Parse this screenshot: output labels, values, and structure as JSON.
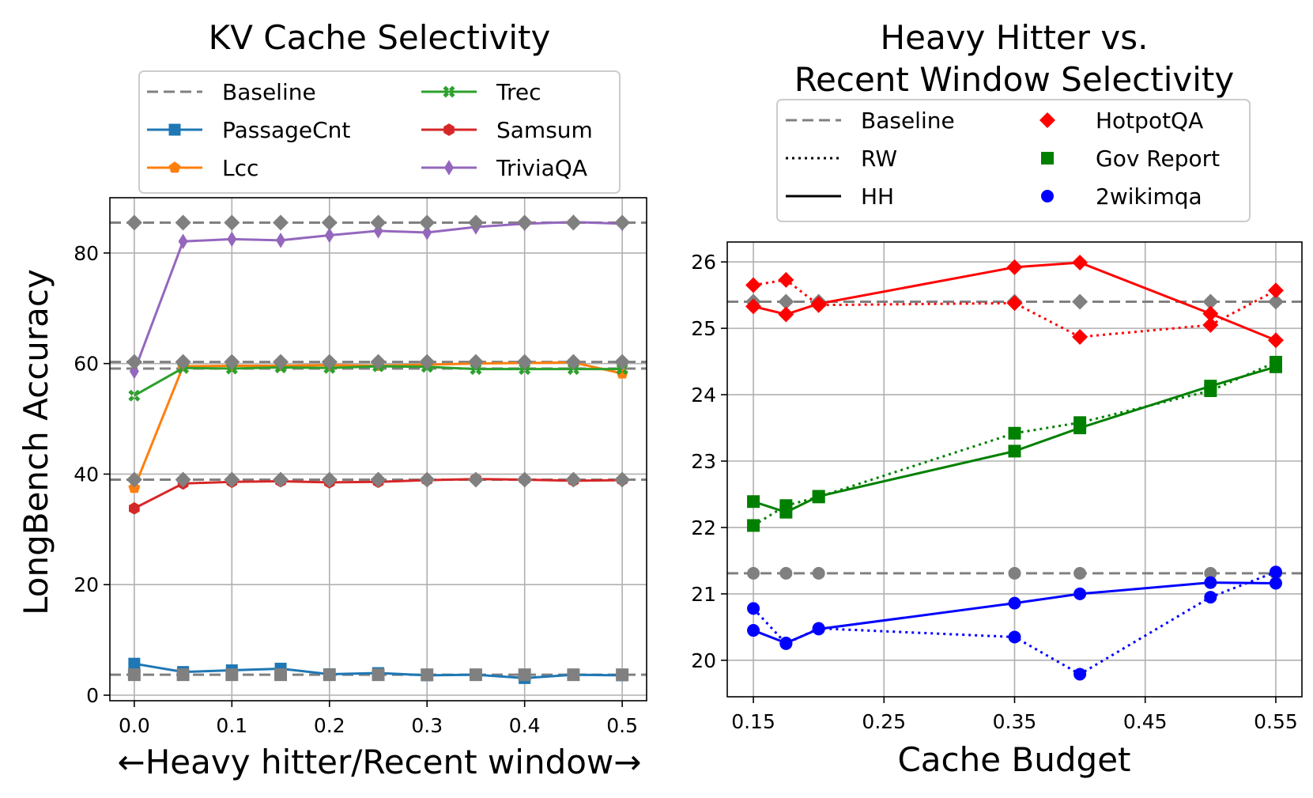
{
  "chart_data": [
    {
      "type": "line",
      "title": "KV Cache Selectivity",
      "xlabel": "←Heavy hitter/Recent window→",
      "ylabel": "LongBench Accuracy",
      "xlim": [
        -0.025,
        0.525
      ],
      "ylim": [
        -1,
        90
      ],
      "xticks": [
        0.0,
        0.1,
        0.2,
        0.3,
        0.4,
        0.5
      ],
      "xtick_labels": [
        "0.0",
        "0.1",
        "0.2",
        "0.3",
        "0.4",
        "0.5"
      ],
      "yticks": [
        0,
        20,
        40,
        60,
        80
      ],
      "ytick_labels": [
        "0",
        "20",
        "40",
        "60",
        "80"
      ],
      "grid": true,
      "legend_location": "above plot",
      "x": [
        0.0,
        0.05,
        0.1,
        0.15,
        0.2,
        0.25,
        0.3,
        0.35,
        0.4,
        0.45,
        0.5
      ],
      "baseline_label": "Baseline",
      "baselines": [
        {
          "value": 85.5,
          "color": "#808080"
        },
        {
          "value": 60.3,
          "color": "#808080"
        },
        {
          "value": 59.1,
          "color": "#808080"
        },
        {
          "value": 39.0,
          "color": "#808080"
        },
        {
          "value": 3.7,
          "color": "#808080"
        }
      ],
      "baseline_marker_series": [
        {
          "values": [
            60.3,
            60.3,
            60.3,
            60.3,
            60.3,
            60.3,
            60.3,
            60.3,
            60.3,
            60.3,
            60.3
          ],
          "marker": "diamond"
        },
        {
          "values": [
            85.5,
            85.5,
            85.5,
            85.5,
            85.5,
            85.5,
            85.5,
            85.5,
            85.5,
            85.5,
            85.5
          ],
          "marker": "diamond"
        },
        {
          "values": [
            39.0,
            39.0,
            39.0,
            39.0,
            39.0,
            39.0,
            39.0,
            39.0,
            39.0,
            39.0,
            39.0
          ],
          "marker": "diamond"
        },
        {
          "values": [
            3.7,
            3.7,
            3.7,
            3.7,
            3.7,
            3.7,
            3.7,
            3.7,
            3.7,
            3.7,
            3.7
          ],
          "marker": "square"
        }
      ],
      "series": [
        {
          "name": "PassageCnt",
          "color": "#1f77b4",
          "marker": "square",
          "values": [
            5.7,
            4.2,
            4.5,
            4.8,
            3.8,
            4.0,
            3.6,
            3.7,
            3.1,
            3.7,
            3.6
          ]
        },
        {
          "name": "Lcc",
          "color": "#ff7f0e",
          "marker": "pentagon",
          "values": [
            37.5,
            59.5,
            59.6,
            59.6,
            59.7,
            59.6,
            59.8,
            60.0,
            60.1,
            60.2,
            58.2
          ]
        },
        {
          "name": "Trec",
          "color": "#2ca02c",
          "marker": "x",
          "values": [
            54.2,
            59.2,
            59.1,
            59.3,
            59.2,
            59.5,
            59.4,
            59.0,
            59.0,
            59.0,
            59.0
          ]
        },
        {
          "name": "Samsum",
          "color": "#d62728",
          "marker": "hexagon",
          "values": [
            33.8,
            38.3,
            38.6,
            38.7,
            38.5,
            38.6,
            38.9,
            39.1,
            39.0,
            38.8,
            38.9
          ]
        },
        {
          "name": "TriviaQA",
          "color": "#9467bd",
          "marker": "thin_diamond",
          "values": [
            58.6,
            82.1,
            82.5,
            82.3,
            83.2,
            84.0,
            83.7,
            84.7,
            85.3,
            85.6,
            85.3
          ]
        }
      ]
    },
    {
      "type": "line",
      "title": "Heavy Hitter vs.",
      "title_line2": "Recent Window Selectivity",
      "xlabel": "Cache Budget",
      "ylabel": "",
      "xlim": [
        0.13,
        0.57
      ],
      "ylim": [
        19.45,
        26.3
      ],
      "xticks": [
        0.15,
        0.25,
        0.35,
        0.45,
        0.55
      ],
      "xtick_labels": [
        "0.15",
        "0.25",
        "0.35",
        "0.45",
        "0.55"
      ],
      "yticks": [
        20,
        21,
        22,
        23,
        24,
        25,
        26
      ],
      "ytick_labels": [
        "20",
        "21",
        "22",
        "23",
        "24",
        "25",
        "26"
      ],
      "grid": true,
      "legend_location": "above plot",
      "x": [
        0.15,
        0.175,
        0.2,
        0.35,
        0.4,
        0.5,
        0.55
      ],
      "style_legend": [
        {
          "label": "Baseline",
          "dash": "dashed",
          "color": "#808080"
        },
        {
          "label": "RW",
          "dash": "dotted",
          "color": "#000000"
        },
        {
          "label": "HH",
          "dash": "solid",
          "color": "#000000"
        }
      ],
      "baselines": [
        {
          "value": 25.4,
          "color": "#808080",
          "marker": "diamond"
        },
        {
          "value": 21.31,
          "color": "#808080",
          "marker": "circle"
        }
      ],
      "series": [
        {
          "name": "HotpotQA",
          "color": "#ff0000",
          "marker": "diamond",
          "rw": [
            25.65,
            25.73,
            25.35,
            25.38,
            24.87,
            25.05,
            25.57
          ],
          "hh": [
            25.33,
            25.21,
            25.37,
            25.92,
            25.99,
            25.22,
            24.82
          ]
        },
        {
          "name": "Gov Report",
          "color": "#008000",
          "marker": "square",
          "rw": [
            22.03,
            22.33,
            22.46,
            23.42,
            23.58,
            24.06,
            24.49
          ],
          "hh": [
            22.39,
            22.23,
            22.47,
            23.15,
            23.5,
            24.13,
            24.42
          ]
        },
        {
          "name": "2wikimqa",
          "color": "#0000ff",
          "marker": "circle",
          "rw": [
            20.78,
            20.25,
            20.48,
            20.35,
            19.79,
            20.95,
            21.33
          ],
          "hh": [
            20.45,
            20.26,
            20.47,
            20.86,
            21.0,
            21.17,
            21.16
          ]
        }
      ]
    }
  ]
}
